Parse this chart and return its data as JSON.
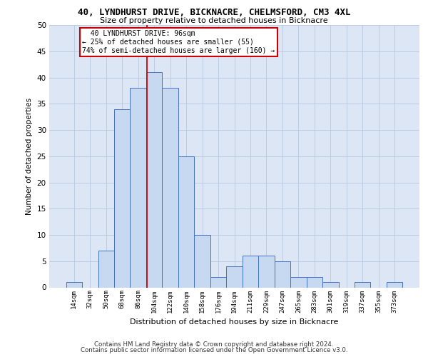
{
  "title": "40, LYNDHURST DRIVE, BICKNACRE, CHELMSFORD, CM3 4XL",
  "subtitle": "Size of property relative to detached houses in Bicknacre",
  "xlabel": "Distribution of detached houses by size in Bicknacre",
  "ylabel": "Number of detached properties",
  "footer1": "Contains HM Land Registry data © Crown copyright and database right 2024.",
  "footer2": "Contains public sector information licensed under the Open Government Licence v3.0.",
  "bin_labels": [
    "14sqm",
    "32sqm",
    "50sqm",
    "68sqm",
    "86sqm",
    "104sqm",
    "122sqm",
    "140sqm",
    "158sqm",
    "176sqm",
    "194sqm",
    "211sqm",
    "229sqm",
    "247sqm",
    "265sqm",
    "283sqm",
    "301sqm",
    "319sqm",
    "337sqm",
    "355sqm",
    "373sqm"
  ],
  "bar_values": [
    1,
    0,
    7,
    34,
    38,
    41,
    38,
    25,
    10,
    2,
    4,
    6,
    6,
    5,
    2,
    2,
    1,
    0,
    1,
    0,
    1
  ],
  "bar_color": "#c6d9f0",
  "bar_edge_color": "#4472c4",
  "ylim": [
    0,
    50
  ],
  "yticks": [
    0,
    5,
    10,
    15,
    20,
    25,
    30,
    35,
    40,
    45,
    50
  ],
  "vline_color": "#cc0000",
  "vline_pos": 4.556,
  "annotation_line1": "  40 LYNDHURST DRIVE: 96sqm  ",
  "annotation_line2": "← 25% of detached houses are smaller (55)",
  "annotation_line3": "74% of semi-detached houses are larger (160) →",
  "annotation_box_color": "#cc0000",
  "background_color": "#dce6f5",
  "grid_color": "#b8c8e0",
  "title_fontsize": 9,
  "subtitle_fontsize": 8
}
